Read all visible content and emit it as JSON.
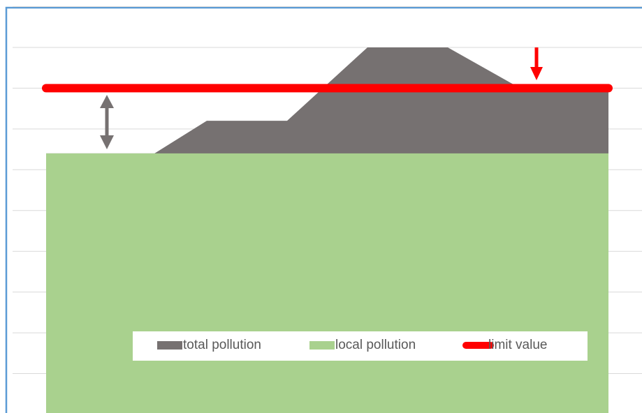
{
  "chart_data": {
    "type": "area",
    "x": [
      0,
      2.7,
      4,
      6,
      8,
      10,
      11.8,
      14
    ],
    "xlim": [
      0,
      14
    ],
    "ylim": [
      0,
      10
    ],
    "yticks": [
      0,
      1,
      2,
      3,
      4,
      5,
      6,
      7,
      8,
      9,
      10
    ],
    "grid": true,
    "series": [
      {
        "name": "total pollution",
        "color": "#767171",
        "values": [
          6.4,
          6.4,
          7.2,
          7.2,
          9,
          9,
          8,
          8
        ]
      },
      {
        "name": "local pollution",
        "color": "#a9d18e",
        "values": [
          6.4,
          6.4,
          6.4,
          6.4,
          6.4,
          6.4,
          6.4,
          6.4
        ]
      },
      {
        "name": "limit value",
        "color": "#ff0000",
        "type": "line",
        "values": [
          8,
          8,
          8,
          8,
          8,
          8,
          8,
          8
        ]
      }
    ],
    "legend": "bottom"
  }
}
